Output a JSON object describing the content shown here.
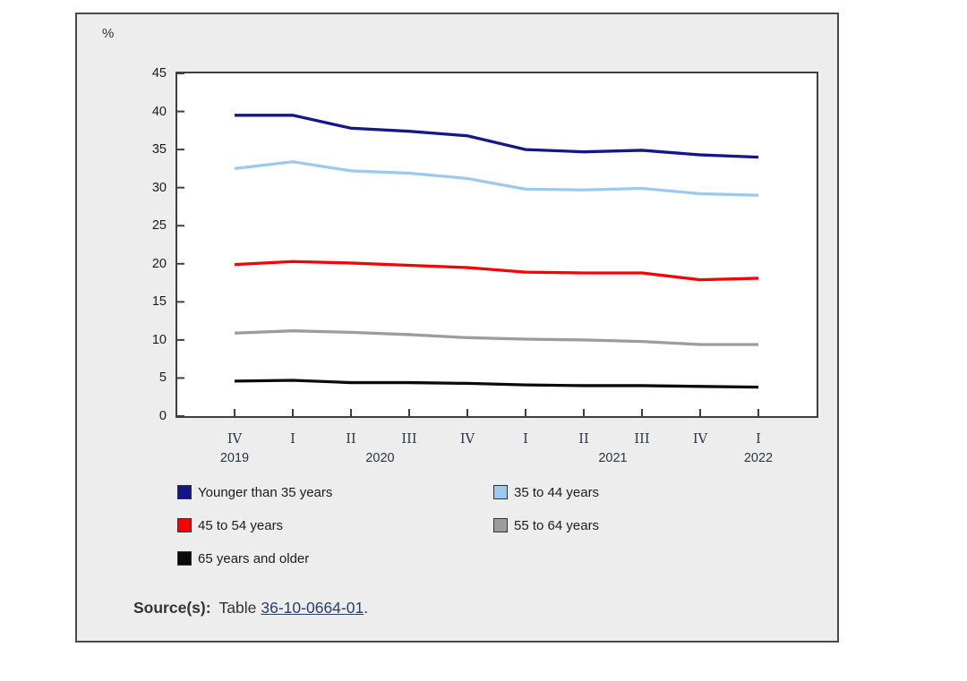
{
  "chart_data": {
    "type": "line",
    "unit_label": "%",
    "x_tick_labels": [
      "IV",
      "I",
      "II",
      "III",
      "IV",
      "I",
      "II",
      "III",
      "IV",
      "I"
    ],
    "x_axis_years": [
      {
        "label": "2019",
        "position": 0
      },
      {
        "label": "2020",
        "position": 2.5
      },
      {
        "label": "2021",
        "position": 6.5
      },
      {
        "label": "2022",
        "position": 9
      }
    ],
    "ylim": [
      0,
      45
    ],
    "ytick_step": 5,
    "grid": false,
    "legend_position": "below-left-two-columns",
    "series": [
      {
        "name": "Younger than 35 years",
        "color": "#15158c",
        "values": [
          39.5,
          39.5,
          37.8,
          37.4,
          36.8,
          35.0,
          34.7,
          34.9,
          34.3,
          34.0
        ]
      },
      {
        "name": "35 to 44 years",
        "color": "#9cc9f0",
        "values": [
          32.5,
          33.4,
          32.2,
          31.9,
          31.2,
          29.8,
          29.7,
          29.9,
          29.2,
          29.0
        ]
      },
      {
        "name": "45 to 54 years",
        "color": "#fb0000",
        "values": [
          19.9,
          20.3,
          20.1,
          19.8,
          19.5,
          18.9,
          18.8,
          18.8,
          17.9,
          18.1
        ]
      },
      {
        "name": "55 to 64 years",
        "color": "#9c9c9c",
        "values": [
          10.9,
          11.2,
          11.0,
          10.7,
          10.3,
          10.1,
          10.0,
          9.8,
          9.4,
          9.4
        ]
      },
      {
        "name": "65 years and older",
        "color": "#0a0a0a",
        "values": [
          4.6,
          4.7,
          4.4,
          4.4,
          4.3,
          4.1,
          4.0,
          4.0,
          3.9,
          3.8
        ]
      }
    ]
  },
  "source": {
    "label": "Source(s):",
    "prefix": "Table",
    "link": "36-10-0664-01",
    "suffix": "."
  }
}
